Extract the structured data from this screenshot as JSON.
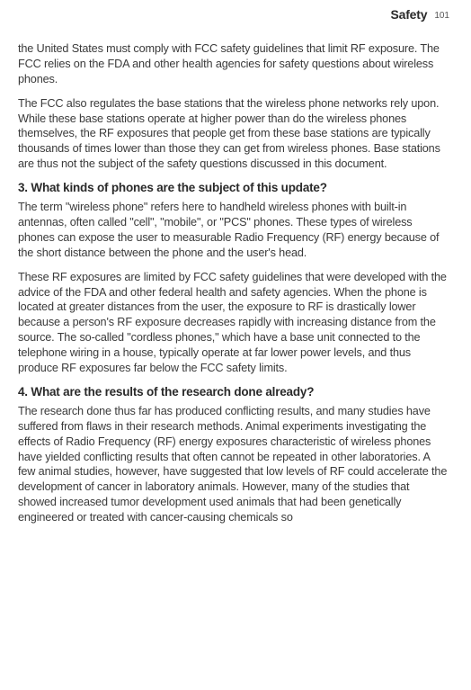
{
  "header": {
    "title": "Safety",
    "page_number": "101"
  },
  "content": {
    "p1": "the United States must comply with FCC safety guidelines that limit RF exposure. The FCC relies on the FDA and other health agencies for safety questions about wireless phones.",
    "p2": "The FCC also regulates the base stations that the wireless phone networks rely upon. While these base stations operate at higher power than do the wireless phones themselves, the RF exposures that people get from these base stations are typically thousands of times lower than those they can get from wireless phones. Base stations are thus not the subject of the safety questions discussed in this document.",
    "h3": "3. What kinds of phones are the subject of this update?",
    "p3": "The term \"wireless phone\" refers here to handheld wireless phones with built-in antennas, often called \"cell\", \"mobile\", or \"PCS\" phones. These types of wireless phones can expose the user to measurable Radio Frequency (RF) energy because of the short distance between the phone and the user's head.",
    "p4": "These RF exposures are limited by FCC safety guidelines that were developed with the advice of the FDA and other federal health and safety agencies. When the phone is located at greater distances from the user, the exposure to RF is drastically lower because a person's RF exposure decreases rapidly with increasing distance from the source. The so-called \"cordless phones,\" which have a base unit connected to the telephone wiring in a house, typically operate at far lower power levels, and thus produce RF exposures far below the FCC safety limits.",
    "h4": "4. What are the results of the research done already?",
    "p5": "The research done thus far has produced conflicting results, and many studies have suffered from flaws in their research methods. Animal experiments investigating the effects of Radio Frequency (RF) energy exposures characteristic of wireless phones have yielded conflicting results that often cannot be repeated in other laboratories. A few animal studies, however, have suggested that low levels of RF could accelerate the development of cancer in laboratory animals. However, many of the studies that showed increased tumor development used animals that had been genetically engineered or treated with cancer-causing chemicals so"
  },
  "styles": {
    "body_text_color": "#3a3a3a",
    "heading_color": "#2a2a2a",
    "background_color": "#ffffff",
    "body_font_size": 12.7,
    "heading_font_size": 13.5,
    "header_title_font_size": 14,
    "page_number_font_size": 10,
    "line_height": 1.33
  }
}
